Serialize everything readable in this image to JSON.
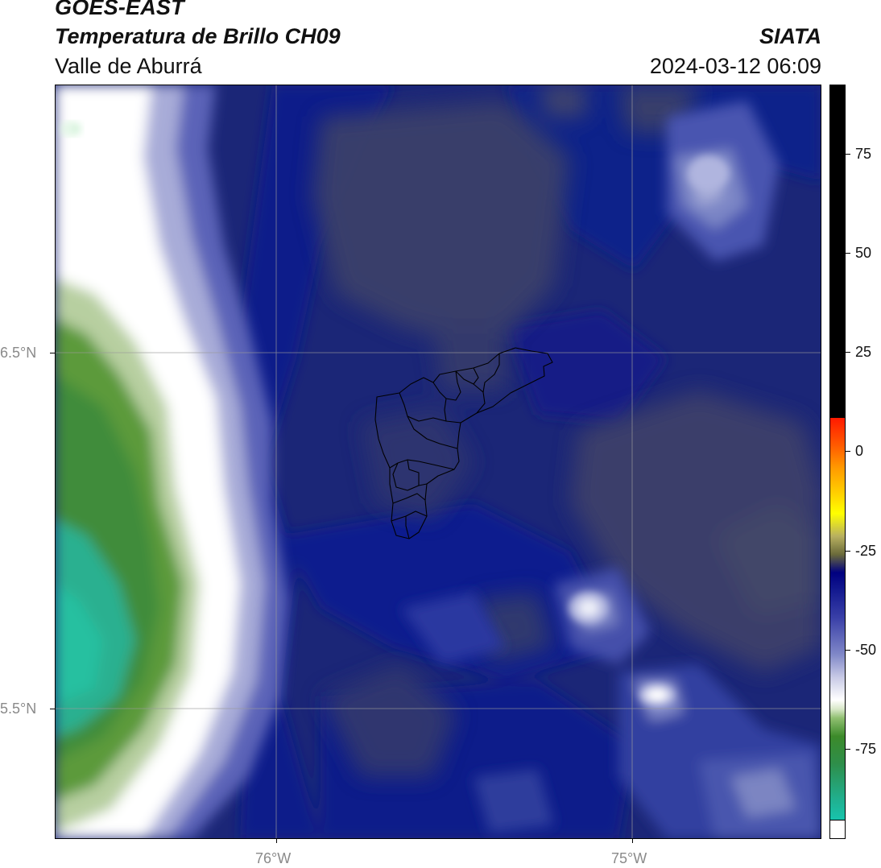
{
  "header": {
    "satellite": "GOES-EAST",
    "product": "Temperatura de Brillo CH09",
    "region": "Valle de Aburrá",
    "source": "SIATA",
    "datetime": "2024-03-12 06:09"
  },
  "map": {
    "lat_labels": [
      "6.5°N",
      "5.5°N"
    ],
    "lon_labels": [
      "76°W",
      "75°W"
    ],
    "gridlines": true,
    "overlay": "Valle de Aburrá municipal boundaries"
  },
  "colorbar": {
    "tick_labels": [
      "75",
      "50",
      "25",
      "0",
      "-25",
      "-50",
      "-75"
    ],
    "colors": {
      "black": "#000000",
      "red": "#ff1a00",
      "orange": "#ff8c00",
      "yellow": "#ffff00",
      "olive": "#6b6b3a",
      "navy": "#000080",
      "blue": "#2a2aa0",
      "white": "#ffffff",
      "green": "#3c8a2a",
      "teal": "#20c0a0",
      "cyan": "#00e5e5"
    }
  }
}
